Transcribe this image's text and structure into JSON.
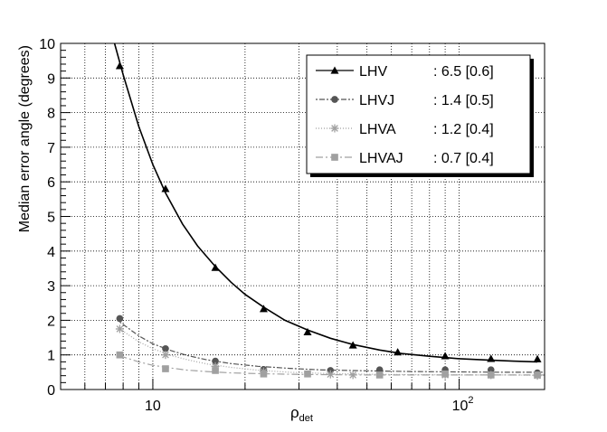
{
  "chart_data": {
    "type": "line",
    "title": "",
    "xlabel": "ρ",
    "xlabel_sub": "det",
    "ylabel": "Median error angle (degrees)",
    "x_scale": "log",
    "xlim": [
      5,
      190
    ],
    "ylim": [
      0,
      10
    ],
    "grid": true,
    "legend_position": "top-right",
    "x_tick_labels": [
      {
        "value": 10,
        "label": "10",
        "sup": ""
      },
      {
        "value": 100,
        "label": "10",
        "sup": "2"
      }
    ],
    "y_ticks": [
      0,
      1,
      2,
      3,
      4,
      5,
      6,
      7,
      8,
      9,
      10
    ],
    "series": [
      {
        "name": "LHV",
        "legend_value": ": 6.5  [0.6]",
        "marker": "triangle",
        "color": "#000000",
        "dash": "",
        "points": [
          [
            7.8,
            9.35
          ],
          [
            11,
            5.8
          ],
          [
            16,
            3.52
          ],
          [
            23,
            2.33
          ],
          [
            32,
            1.66
          ],
          [
            45,
            1.28
          ],
          [
            63,
            1.08
          ],
          [
            90,
            0.97
          ],
          [
            127,
            0.89
          ],
          [
            180,
            0.88
          ]
        ],
        "fit": [
          [
            7.5,
            10.1
          ],
          [
            8,
            9.1
          ],
          [
            9,
            7.6
          ],
          [
            10,
            6.5
          ],
          [
            11,
            5.68
          ],
          [
            12.5,
            4.78
          ],
          [
            14,
            4.15
          ],
          [
            16,
            3.55
          ],
          [
            18,
            3.1
          ],
          [
            20,
            2.75
          ],
          [
            23,
            2.38
          ],
          [
            27,
            2.0
          ],
          [
            32,
            1.72
          ],
          [
            38,
            1.48
          ],
          [
            45,
            1.3
          ],
          [
            55,
            1.14
          ],
          [
            65,
            1.04
          ],
          [
            80,
            0.96
          ],
          [
            100,
            0.89
          ],
          [
            125,
            0.85
          ],
          [
            150,
            0.82
          ],
          [
            180,
            0.8
          ]
        ]
      },
      {
        "name": "LHVJ",
        "legend_value": ": 1.4  [0.5]",
        "marker": "circle",
        "color": "#555555",
        "dash": "2,2,6,2",
        "points": [
          [
            7.8,
            2.05
          ],
          [
            11,
            1.18
          ],
          [
            16,
            0.82
          ],
          [
            23,
            0.58
          ],
          [
            38,
            0.55
          ],
          [
            55,
            0.57
          ],
          [
            90,
            0.57
          ],
          [
            127,
            0.57
          ],
          [
            180,
            0.48
          ]
        ],
        "fit": [
          [
            7.8,
            1.95
          ],
          [
            9,
            1.55
          ],
          [
            10,
            1.32
          ],
          [
            11.5,
            1.12
          ],
          [
            13,
            0.98
          ],
          [
            15,
            0.86
          ],
          [
            18,
            0.75
          ],
          [
            22,
            0.67
          ],
          [
            28,
            0.61
          ],
          [
            35,
            0.57
          ],
          [
            50,
            0.54
          ],
          [
            70,
            0.52
          ],
          [
            100,
            0.51
          ],
          [
            140,
            0.5
          ],
          [
            190,
            0.5
          ]
        ]
      },
      {
        "name": "LHVA",
        "legend_value": ": 1.2  [0.4]",
        "marker": "star",
        "color": "#a0a0a0",
        "dash": "1,2",
        "points": [
          [
            7.8,
            1.75
          ],
          [
            11,
            1.0
          ],
          [
            16,
            0.67
          ],
          [
            23,
            0.52
          ],
          [
            38,
            0.44
          ],
          [
            45,
            0.42
          ],
          [
            90,
            0.42
          ],
          [
            127,
            0.42
          ],
          [
            180,
            0.4
          ]
        ],
        "fit": [
          [
            7.8,
            1.75
          ],
          [
            9,
            1.38
          ],
          [
            10,
            1.18
          ],
          [
            11.5,
            0.98
          ],
          [
            13,
            0.86
          ],
          [
            15,
            0.74
          ],
          [
            18,
            0.64
          ],
          [
            22,
            0.56
          ],
          [
            28,
            0.5
          ],
          [
            35,
            0.47
          ],
          [
            50,
            0.44
          ],
          [
            70,
            0.43
          ],
          [
            100,
            0.42
          ],
          [
            140,
            0.42
          ],
          [
            190,
            0.41
          ]
        ]
      },
      {
        "name": "LHVAJ",
        "legend_value": ": 0.7  [0.4]",
        "marker": "square",
        "color": "#a0a0a0",
        "dash": "8,3,2,3",
        "points": [
          [
            7.8,
            1.0
          ],
          [
            11,
            0.6
          ],
          [
            16,
            0.55
          ],
          [
            23,
            0.45
          ],
          [
            32,
            0.45
          ],
          [
            55,
            0.42
          ],
          [
            90,
            0.45
          ],
          [
            127,
            0.42
          ],
          [
            180,
            0.42
          ]
        ],
        "fit": [
          [
            7.8,
            0.97
          ],
          [
            9,
            0.8
          ],
          [
            10,
            0.7
          ],
          [
            11.5,
            0.62
          ],
          [
            13,
            0.56
          ],
          [
            15,
            0.52
          ],
          [
            18,
            0.48
          ],
          [
            22,
            0.46
          ],
          [
            28,
            0.44
          ],
          [
            35,
            0.43
          ],
          [
            50,
            0.42
          ],
          [
            70,
            0.42
          ],
          [
            100,
            0.42
          ],
          [
            140,
            0.42
          ],
          [
            190,
            0.42
          ]
        ]
      }
    ]
  }
}
